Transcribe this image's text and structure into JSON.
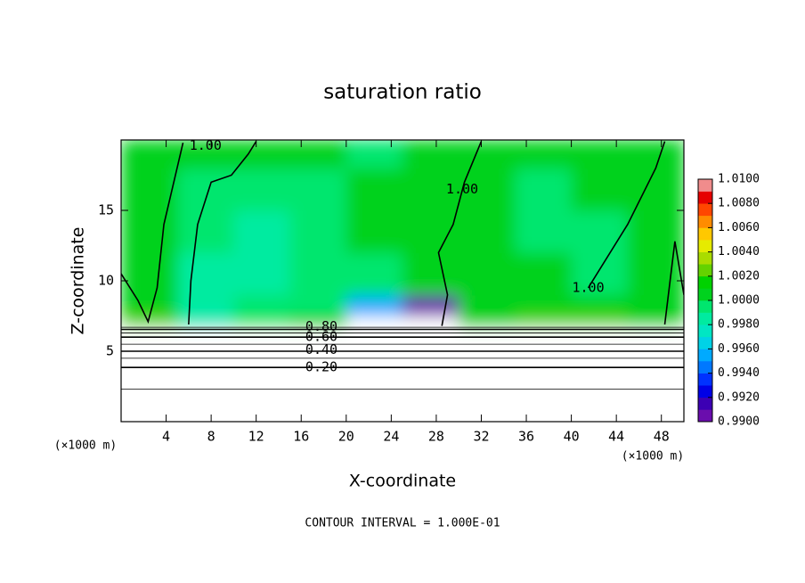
{
  "chart_data": {
    "type": "contour",
    "title": "saturation ratio",
    "xlabel": "X-coordinate",
    "ylabel": "Z-coordinate",
    "x_unit": "(×1000 m)",
    "footer": "CONTOUR INTERVAL = 1.000E-01",
    "xlim": [
      0,
      50
    ],
    "ylim": [
      0,
      20
    ],
    "xticks": [
      4,
      8,
      12,
      16,
      20,
      24,
      28,
      32,
      36,
      40,
      44,
      48
    ],
    "yticks": [
      5,
      10,
      15
    ],
    "x_edges": [
      0,
      5,
      10,
      15,
      20,
      25,
      30,
      35,
      40,
      45,
      50
    ],
    "z_edges": [
      0,
      2,
      4,
      5.5,
      6.7,
      7.5,
      9,
      12,
      15,
      18,
      20
    ],
    "values": [
      [
        0.05,
        0.05,
        0.05,
        0.05,
        0.05,
        0.05,
        0.05,
        0.05,
        0.05,
        0.05
      ],
      [
        0.25,
        0.25,
        0.25,
        0.25,
        0.25,
        0.25,
        0.25,
        0.25,
        0.25,
        0.25
      ],
      [
        0.45,
        0.45,
        0.45,
        0.45,
        0.45,
        0.45,
        0.45,
        0.45,
        0.45,
        0.45
      ],
      [
        0.75,
        0.75,
        0.75,
        0.75,
        0.75,
        0.75,
        0.75,
        0.75,
        0.75,
        0.75
      ],
      [
        1.003,
        0.997,
        0.999,
        1.0,
        0.98,
        0.97,
        1.0,
        1.003,
        1.003,
        1.001
      ],
      [
        1.0005,
        0.998,
        0.999,
        0.9995,
        0.995,
        0.99,
        1.0,
        1.001,
        1.0005,
        1.0005
      ],
      [
        1.0002,
        0.9985,
        0.9985,
        0.9992,
        0.9995,
        1.0,
        1.0,
        1.0002,
        0.9995,
        1.0002
      ],
      [
        1.0,
        0.9992,
        0.9988,
        0.9995,
        1.0,
        1.0,
        1.0,
        0.9998,
        0.9998,
        1.0
      ],
      [
        1.0,
        0.9995,
        0.9995,
        0.9998,
        1.0,
        1.0,
        1.0,
        0.9998,
        1.0,
        1.0
      ],
      [
        1.0,
        1.0,
        1.0,
        1.0,
        0.9995,
        1.0,
        1.0,
        1.0,
        1.0,
        1.0
      ]
    ],
    "colorbar_ticks": [
      {
        "value": 0.99,
        "label": "0.9900"
      },
      {
        "value": 0.992,
        "label": "0.9920"
      },
      {
        "value": 0.994,
        "label": "0.9940"
      },
      {
        "value": 0.996,
        "label": "0.9960"
      },
      {
        "value": 0.998,
        "label": "0.9980"
      },
      {
        "value": 1.0,
        "label": "1.0000"
      },
      {
        "value": 1.002,
        "label": "1.0020"
      },
      {
        "value": 1.004,
        "label": "1.0040"
      },
      {
        "value": 1.006,
        "label": "1.0060"
      },
      {
        "value": 1.008,
        "label": "1.0080"
      },
      {
        "value": 1.01,
        "label": "1.0100"
      }
    ],
    "colors": [
      "#6a0dad",
      "#3c00b4",
      "#0000e6",
      "#0032ff",
      "#0078ff",
      "#00aaff",
      "#00d2e6",
      "#00e6c3",
      "#00eba0",
      "#00e66e",
      "#00d21e",
      "#00d200",
      "#64d200",
      "#aadc00",
      "#e6eb00",
      "#ffc800",
      "#ff8c00",
      "#ff4600",
      "#e60000",
      "#f08c8c"
    ],
    "contours": [
      {
        "level": 0.1,
        "x": [
          0,
          50
        ],
        "z": [
          2.3,
          2.3
        ]
      },
      {
        "level": 0.2,
        "x": [
          0,
          50
        ],
        "z": [
          3.85,
          3.85
        ]
      },
      {
        "level": 0.3,
        "x": [
          0,
          50
        ],
        "z": [
          4.5,
          4.5
        ]
      },
      {
        "level": 0.4,
        "x": [
          0,
          50
        ],
        "z": [
          5.0,
          5.0
        ]
      },
      {
        "level": 0.5,
        "x": [
          0,
          50
        ],
        "z": [
          5.5,
          5.5
        ]
      },
      {
        "level": 0.6,
        "x": [
          0,
          50
        ],
        "z": [
          6.0,
          6.0
        ]
      },
      {
        "level": 0.7,
        "x": [
          0,
          50
        ],
        "z": [
          6.3,
          6.3
        ]
      },
      {
        "level": 0.8,
        "x": [
          0,
          50
        ],
        "z": [
          6.55,
          6.55
        ]
      },
      {
        "level": 0.9,
        "x": [
          0,
          50
        ],
        "z": [
          6.7,
          6.7
        ]
      },
      {
        "level": 1.0,
        "x": [
          0.0,
          1.5,
          2.4,
          3.2,
          3.8,
          5.5
        ],
        "z": [
          10.5,
          8.6,
          7.1,
          9.5,
          14,
          19.8
        ]
      },
      {
        "level": 1.0,
        "x": [
          6.0,
          6.2,
          6.8,
          8.0,
          9.8,
          11.3,
          12.0
        ],
        "z": [
          6.9,
          10,
          14,
          17,
          17.5,
          19,
          19.9
        ]
      },
      {
        "level": 1.0,
        "x": [
          28.5,
          29,
          28.2,
          29.5,
          30.5,
          32.0
        ],
        "z": [
          6.8,
          9,
          12,
          14,
          17,
          19.9
        ]
      },
      {
        "level": 1.0,
        "x": [
          41.5,
          45,
          47.5,
          48.3
        ],
        "z": [
          9.5,
          14,
          18,
          19.9
        ]
      },
      {
        "level": 1.0,
        "x": [
          48.3,
          49.2,
          50
        ],
        "z": [
          6.9,
          12.8,
          9
        ]
      }
    ],
    "contour_labels": [
      {
        "value": 0.2,
        "label": "0.20",
        "x": 17.8,
        "z": 3.85
      },
      {
        "value": 0.4,
        "label": "0.40",
        "x": 17.8,
        "z": 5.1
      },
      {
        "value": 0.6,
        "label": "0.60",
        "x": 17.8,
        "z": 6.0
      },
      {
        "value": 0.8,
        "label": "0.80",
        "x": 17.8,
        "z": 6.75
      },
      {
        "value": 1.0,
        "label": "1.00",
        "x": 7.5,
        "z": 19.6
      },
      {
        "value": 1.0,
        "label": "1.00",
        "x": 30.3,
        "z": 16.5
      },
      {
        "value": 1.0,
        "label": "1.00",
        "x": 41.5,
        "z": 9.5
      }
    ]
  }
}
